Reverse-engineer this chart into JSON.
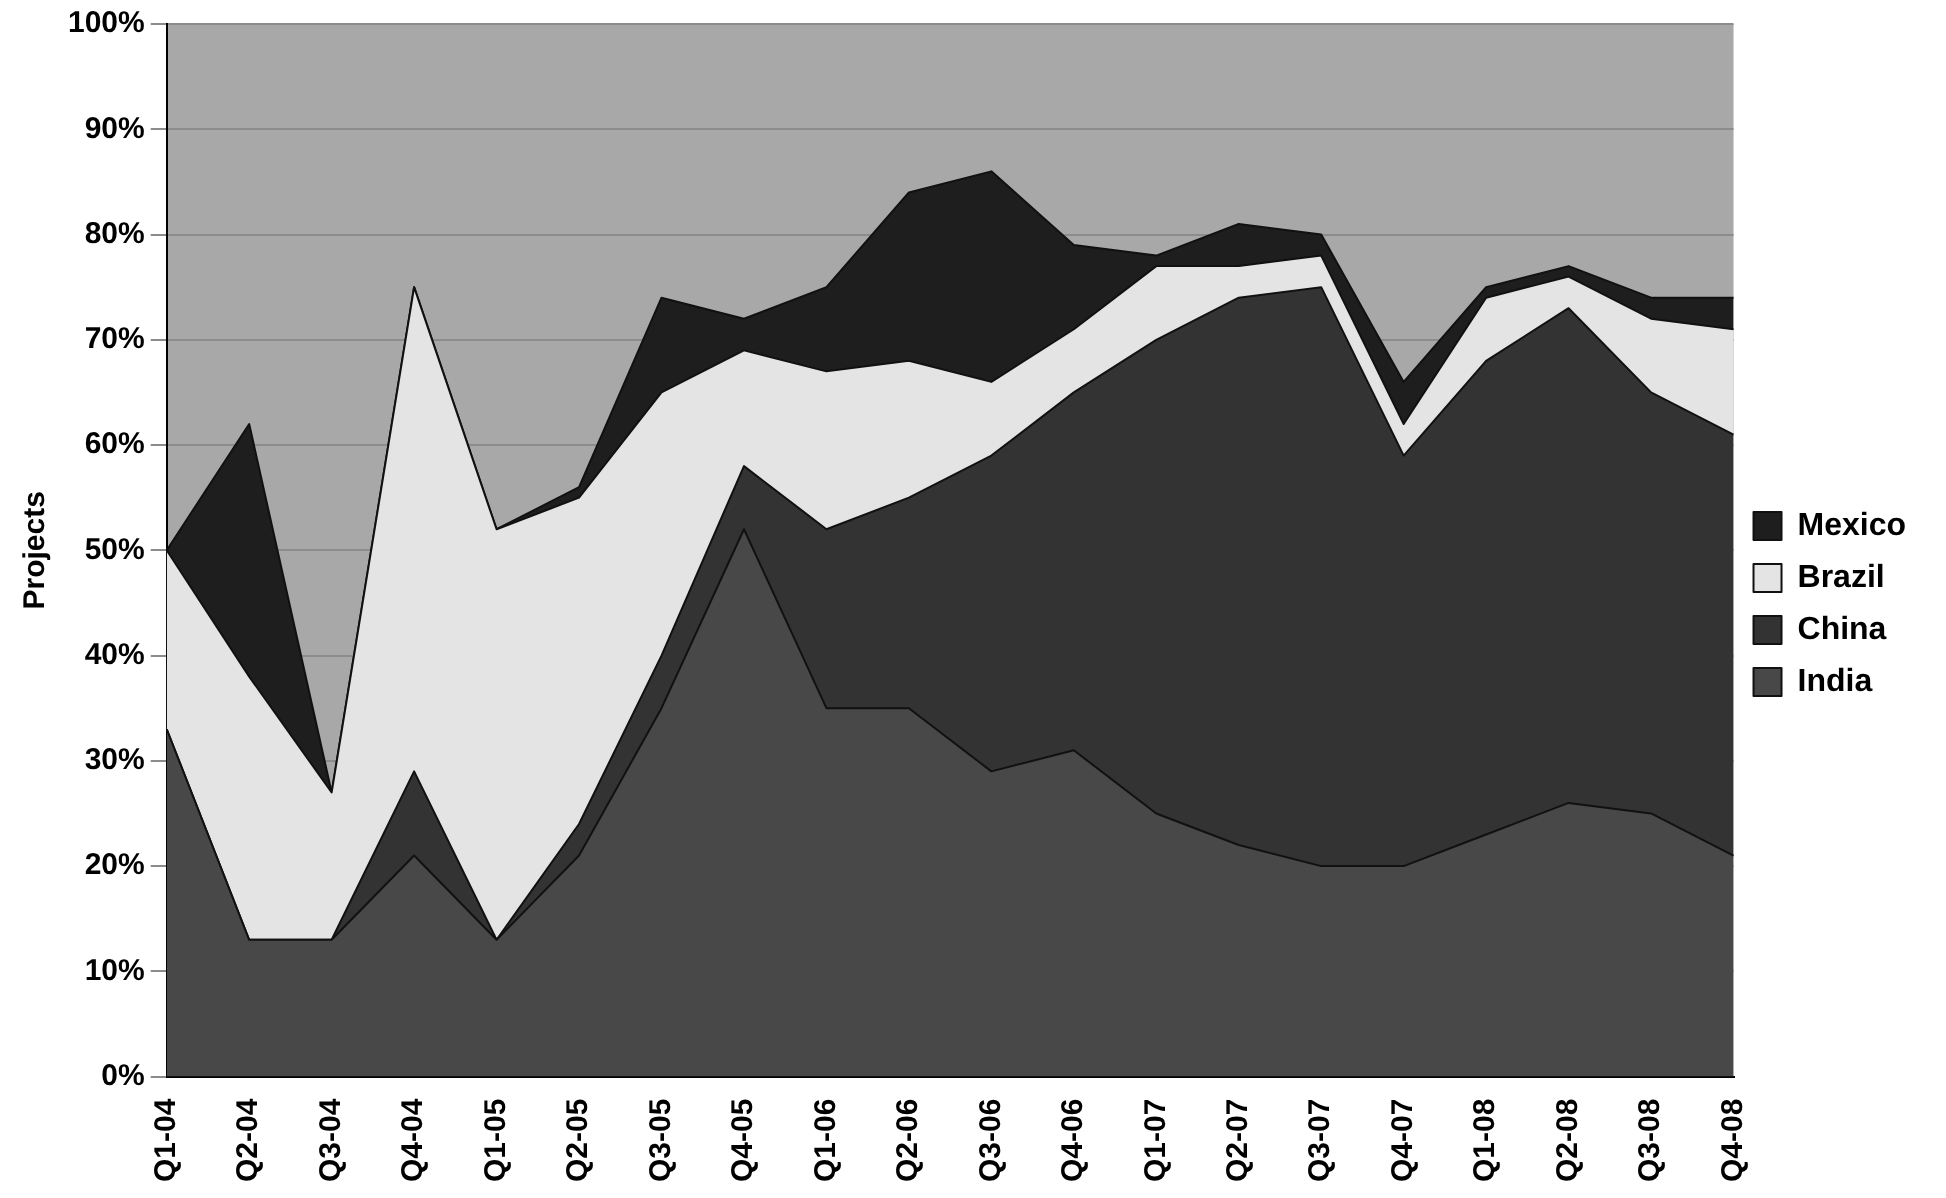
{
  "chart_data": {
    "type": "area",
    "stacked": true,
    "ylabel": "Projects",
    "categories": [
      "Q1-04",
      "Q2-04",
      "Q3-04",
      "Q4-04",
      "Q1-05",
      "Q2-05",
      "Q3-05",
      "Q4-05",
      "Q1-06",
      "Q2-06",
      "Q3-06",
      "Q4-06",
      "Q1-07",
      "Q2-07",
      "Q3-07",
      "Q4-07",
      "Q1-08",
      "Q2-08",
      "Q3-08",
      "Q4-08"
    ],
    "series": [
      {
        "name": "India",
        "color": "#484848",
        "values": [
          33,
          13,
          13,
          21,
          13,
          21,
          35,
          52,
          35,
          35,
          29,
          31,
          25,
          22,
          20,
          20,
          23,
          26,
          25,
          21
        ]
      },
      {
        "name": "China",
        "color": "#333333",
        "values": [
          0,
          0,
          0,
          8,
          0,
          3,
          5,
          6,
          17,
          20,
          30,
          34,
          45,
          52,
          55,
          39,
          45,
          47,
          40,
          40
        ]
      },
      {
        "name": "Brazil",
        "color": "#e4e4e4",
        "values": [
          17,
          25,
          14,
          46,
          39,
          31,
          25,
          11,
          15,
          13,
          7,
          6,
          7,
          3,
          3,
          3,
          6,
          3,
          7,
          10
        ]
      },
      {
        "name": "Mexico",
        "color": "#1e1e1e",
        "values": [
          0,
          24,
          0,
          0,
          0,
          1,
          9,
          3,
          8,
          16,
          20,
          8,
          1,
          4,
          2,
          4,
          1,
          1,
          2,
          3
        ]
      }
    ],
    "ylim": [
      0,
      100
    ],
    "yticks": [
      {
        "value": 0,
        "label": "0%"
      },
      {
        "value": 10,
        "label": "10%"
      },
      {
        "value": 20,
        "label": "20%"
      },
      {
        "value": 30,
        "label": "30%"
      },
      {
        "value": 40,
        "label": "40%"
      },
      {
        "value": 50,
        "label": "50%"
      },
      {
        "value": 60,
        "label": "60%"
      },
      {
        "value": 70,
        "label": "70%"
      },
      {
        "value": 80,
        "label": "80%"
      },
      {
        "value": 90,
        "label": "90%"
      },
      {
        "value": 100,
        "label": "100%"
      }
    ],
    "grid": "y",
    "legend": "right"
  }
}
